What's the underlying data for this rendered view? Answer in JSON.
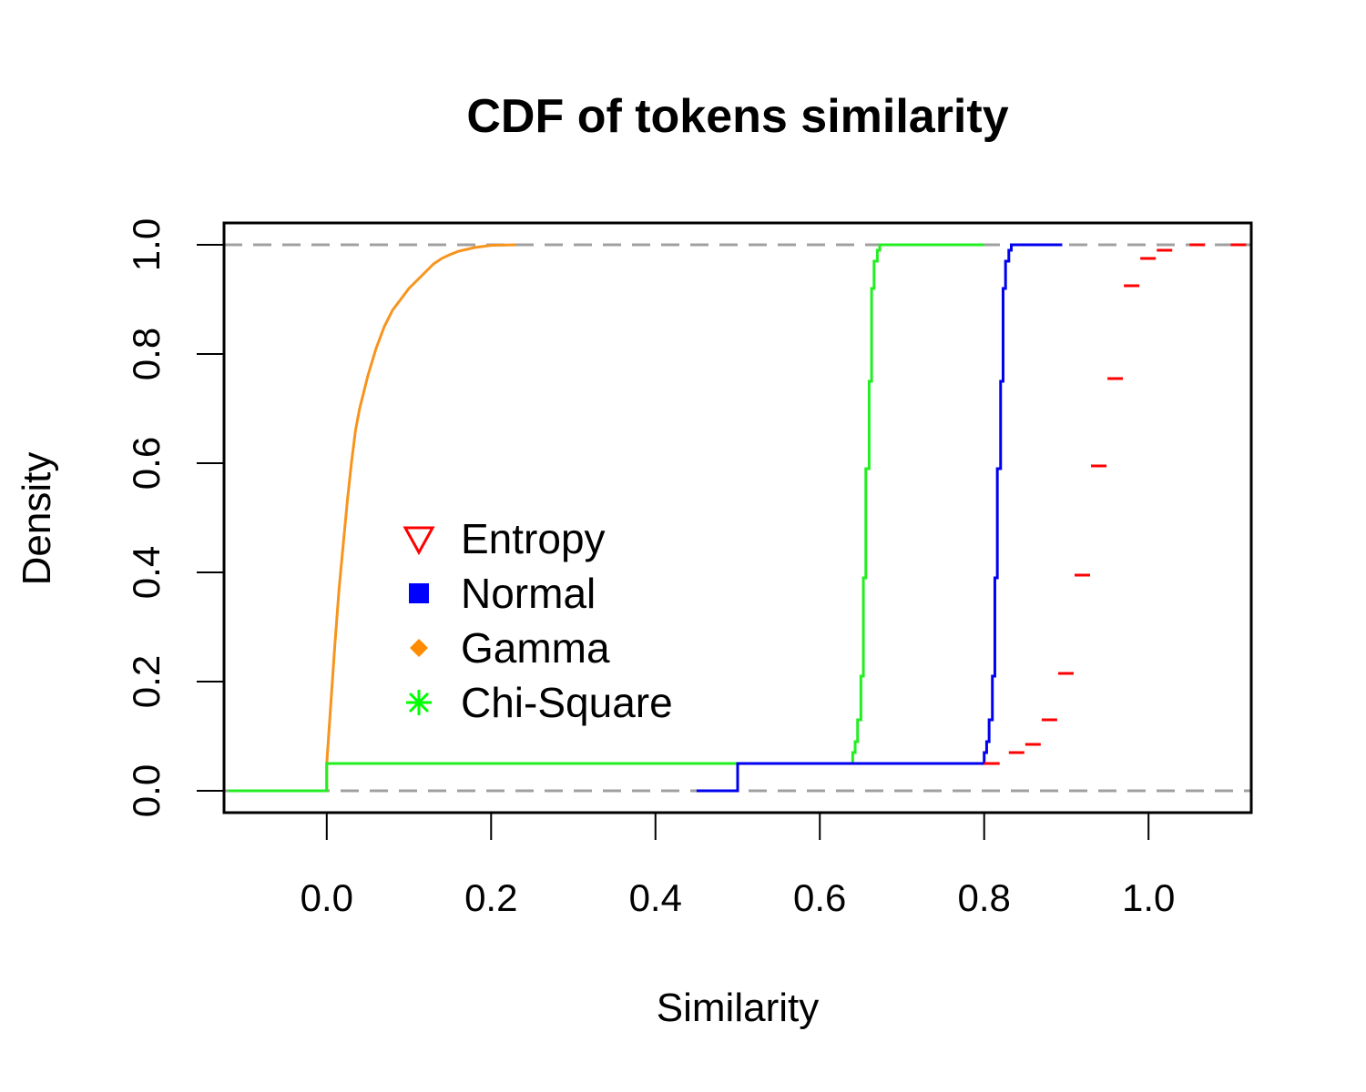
{
  "chart_data": {
    "type": "line",
    "title": "CDF of tokens similarity",
    "xlabel": "Similarity",
    "ylabel": "Density",
    "xlim": [
      -0.125,
      1.125
    ],
    "ylim": [
      -0.04,
      1.04
    ],
    "x_ticks": [
      "0.0",
      "0.2",
      "0.4",
      "0.6",
      "0.8",
      "1.0"
    ],
    "y_ticks": [
      "0.0",
      "0.2",
      "0.4",
      "0.6",
      "0.8",
      "1.0"
    ],
    "x_tick_values": [
      0.0,
      0.2,
      0.4,
      0.6,
      0.8,
      1.0
    ],
    "y_tick_values": [
      0.0,
      0.2,
      0.4,
      0.6,
      0.8,
      1.0
    ],
    "reference_lines": [
      0,
      1
    ],
    "grid": false,
    "legend_position": "center-left",
    "legend": [
      {
        "label": "Entropy",
        "symbol": "triangle-down-open",
        "color": "#ff0000"
      },
      {
        "label": "Normal",
        "symbol": "square-filled",
        "color": "#0000ff"
      },
      {
        "label": "Gamma",
        "symbol": "diamond-filled",
        "color": "#ff8c00"
      },
      {
        "label": "Chi-Square",
        "symbol": "asterisk",
        "color": "#00ff00"
      }
    ],
    "series": [
      {
        "name": "Gamma",
        "color": "#f7941d",
        "style": "smooth",
        "x": [
          -0.12,
          0.0,
          0.0,
          0.005,
          0.01,
          0.015,
          0.02,
          0.025,
          0.03,
          0.035,
          0.04,
          0.045,
          0.05,
          0.06,
          0.07,
          0.08,
          0.09,
          0.1,
          0.11,
          0.12,
          0.13,
          0.14,
          0.15,
          0.16,
          0.18,
          0.2,
          0.23
        ],
        "y": [
          0.0,
          0.0,
          0.05,
          0.16,
          0.27,
          0.37,
          0.45,
          0.53,
          0.6,
          0.66,
          0.7,
          0.73,
          0.76,
          0.81,
          0.85,
          0.88,
          0.9,
          0.92,
          0.935,
          0.95,
          0.965,
          0.975,
          0.982,
          0.988,
          0.995,
          0.999,
          1.0
        ]
      },
      {
        "name": "Chi-Square",
        "color": "#22ee22",
        "style": "step",
        "x": [
          -0.12,
          0.0,
          0.64,
          0.643,
          0.646,
          0.65,
          0.653,
          0.656,
          0.66,
          0.663,
          0.666,
          0.67,
          0.673,
          0.676,
          0.68,
          0.8
        ],
        "y": [
          0.0,
          0.05,
          0.07,
          0.09,
          0.13,
          0.21,
          0.39,
          0.59,
          0.75,
          0.92,
          0.97,
          0.99,
          1.0,
          1.0,
          1.0,
          1.0
        ]
      },
      {
        "name": "Normal",
        "color": "#0000ee",
        "style": "step",
        "x": [
          0.45,
          0.5,
          0.8,
          0.803,
          0.806,
          0.81,
          0.813,
          0.816,
          0.82,
          0.823,
          0.826,
          0.83,
          0.833,
          0.836,
          0.84,
          0.895
        ],
        "y": [
          0.0,
          0.05,
          0.07,
          0.09,
          0.13,
          0.21,
          0.39,
          0.59,
          0.75,
          0.92,
          0.97,
          0.99,
          1.0,
          1.0,
          1.0,
          1.0
        ]
      },
      {
        "name": "Entropy",
        "color": "#ff0000",
        "style": "dashes",
        "x": [
          0.8,
          0.83,
          0.85,
          0.87,
          0.89,
          0.91,
          0.93,
          0.95,
          0.97,
          0.99,
          1.01,
          1.05,
          1.1
        ],
        "y": [
          0.05,
          0.07,
          0.085,
          0.13,
          0.215,
          0.395,
          0.595,
          0.755,
          0.925,
          0.975,
          0.99,
          1.0,
          1.0
        ]
      }
    ]
  }
}
